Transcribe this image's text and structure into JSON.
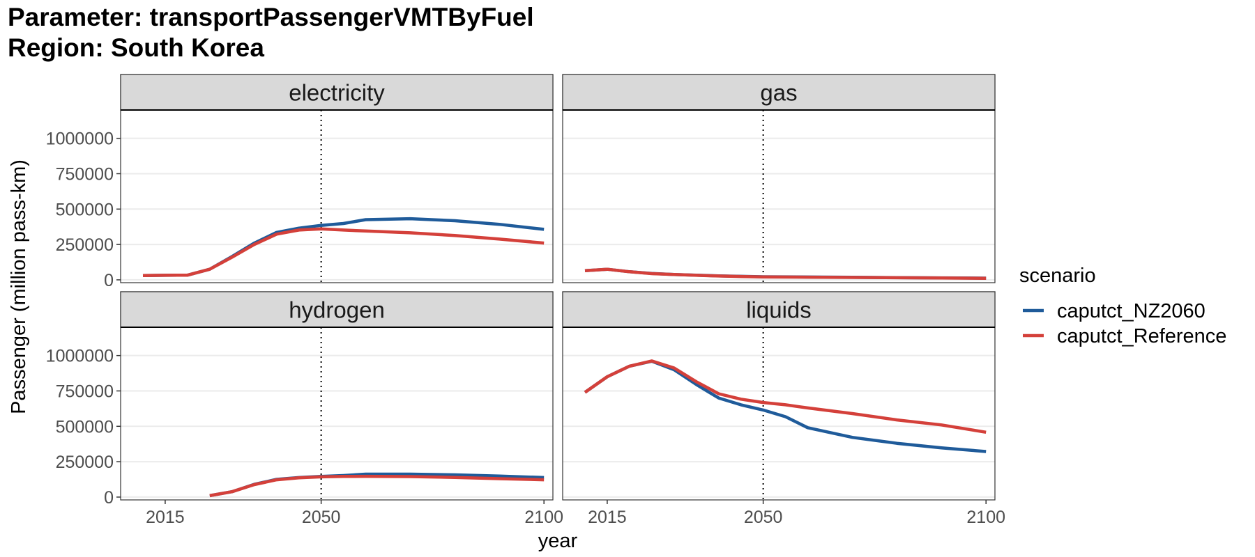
{
  "title": {
    "line1": "Parameter: transportPassengerVMTByFuel",
    "line2": "Region: South Korea"
  },
  "colors": {
    "caputct_NZ2060": "#1f5b9a",
    "caputct_Reference": "#d4403a",
    "strip_bg": "#d9d9d9",
    "grid": "#ebebeb",
    "panel_border": "#333333"
  },
  "chart_data": {
    "type": "line",
    "layout": "facet_wrap 2x2",
    "xlabel": "year",
    "ylabel": "Passenger (million pass-km)",
    "xlim": [
      2005,
      2102
    ],
    "ylim": [
      -20000,
      1200000
    ],
    "x_ticks": [
      2015,
      2050,
      2100
    ],
    "x_tick_labels": [
      "2015",
      "2050",
      "2100"
    ],
    "y_ticks": [
      0,
      250000,
      500000,
      750000,
      1000000
    ],
    "y_tick_labels": [
      "0",
      "250000",
      "500000",
      "750000",
      "1000000"
    ],
    "vline_x": 2050,
    "vline_style": "dotted",
    "grid": true,
    "legend": {
      "title": "scenario",
      "position": "right",
      "entries": [
        "caputct_NZ2060",
        "caputct_Reference"
      ]
    },
    "facets": [
      {
        "name": "electricity",
        "series": [
          {
            "name": "caputct_NZ2060",
            "x": [
              2010,
              2015,
              2020,
              2025,
              2030,
              2035,
              2040,
              2045,
              2050,
              2055,
              2060,
              2070,
              2080,
              2090,
              2100
            ],
            "y": [
              30000,
              32000,
              33000,
              75000,
              165000,
              260000,
              335000,
              365000,
              385000,
              398000,
              425000,
              432000,
              418000,
              392000,
              357000
            ]
          },
          {
            "name": "caputct_Reference",
            "x": [
              2010,
              2015,
              2020,
              2025,
              2030,
              2035,
              2040,
              2045,
              2050,
              2055,
              2060,
              2070,
              2080,
              2090,
              2100
            ],
            "y": [
              30000,
              32000,
              33000,
              75000,
              160000,
              250000,
              323000,
              352000,
              360000,
              352000,
              345000,
              332000,
              313000,
              288000,
              260000
            ]
          }
        ]
      },
      {
        "name": "gas",
        "series": [
          {
            "name": "caputct_NZ2060",
            "x": [
              2010,
              2015,
              2020,
              2025,
              2030,
              2035,
              2040,
              2045,
              2050,
              2060,
              2070,
              2080,
              2090,
              2100
            ],
            "y": [
              65000,
              75000,
              57000,
              45000,
              38000,
              33000,
              28000,
              25000,
              22000,
              20000,
              18000,
              16000,
              14000,
              12000
            ]
          },
          {
            "name": "caputct_Reference",
            "x": [
              2010,
              2015,
              2020,
              2025,
              2030,
              2035,
              2040,
              2045,
              2050,
              2060,
              2070,
              2080,
              2090,
              2100
            ],
            "y": [
              65000,
              75000,
              57000,
              44000,
              38000,
              32000,
              27000,
              24000,
              21000,
              19000,
              17000,
              15000,
              13000,
              11000
            ]
          }
        ]
      },
      {
        "name": "hydrogen",
        "series": [
          {
            "name": "caputct_NZ2060",
            "x": [
              2025,
              2030,
              2035,
              2040,
              2045,
              2050,
              2055,
              2060,
              2070,
              2080,
              2090,
              2100
            ],
            "y": [
              10000,
              38000,
              90000,
              125000,
              138000,
              146000,
              152000,
              162000,
              162000,
              157000,
              148000,
              138000
            ]
          },
          {
            "name": "caputct_Reference",
            "x": [
              2025,
              2030,
              2035,
              2040,
              2045,
              2050,
              2055,
              2060,
              2070,
              2080,
              2090,
              2100
            ],
            "y": [
              10000,
              38000,
              88000,
              122000,
              136000,
              143000,
              146000,
              147000,
              145000,
              139000,
              130000,
              122000
            ]
          }
        ]
      },
      {
        "name": "liquids",
        "series": [
          {
            "name": "caputct_NZ2060",
            "x": [
              2010,
              2015,
              2020,
              2025,
              2030,
              2035,
              2040,
              2045,
              2050,
              2055,
              2060,
              2070,
              2080,
              2090,
              2100
            ],
            "y": [
              740000,
              850000,
              925000,
              960000,
              900000,
              795000,
              700000,
              652000,
              615000,
              568000,
              490000,
              422000,
              380000,
              348000,
              322000
            ]
          },
          {
            "name": "caputct_Reference",
            "x": [
              2010,
              2015,
              2020,
              2025,
              2030,
              2035,
              2040,
              2045,
              2050,
              2055,
              2060,
              2070,
              2080,
              2090,
              2100
            ],
            "y": [
              740000,
              850000,
              925000,
              962000,
              912000,
              815000,
              730000,
              692000,
              668000,
              652000,
              630000,
              590000,
              545000,
              510000,
              458000
            ]
          }
        ]
      }
    ]
  }
}
